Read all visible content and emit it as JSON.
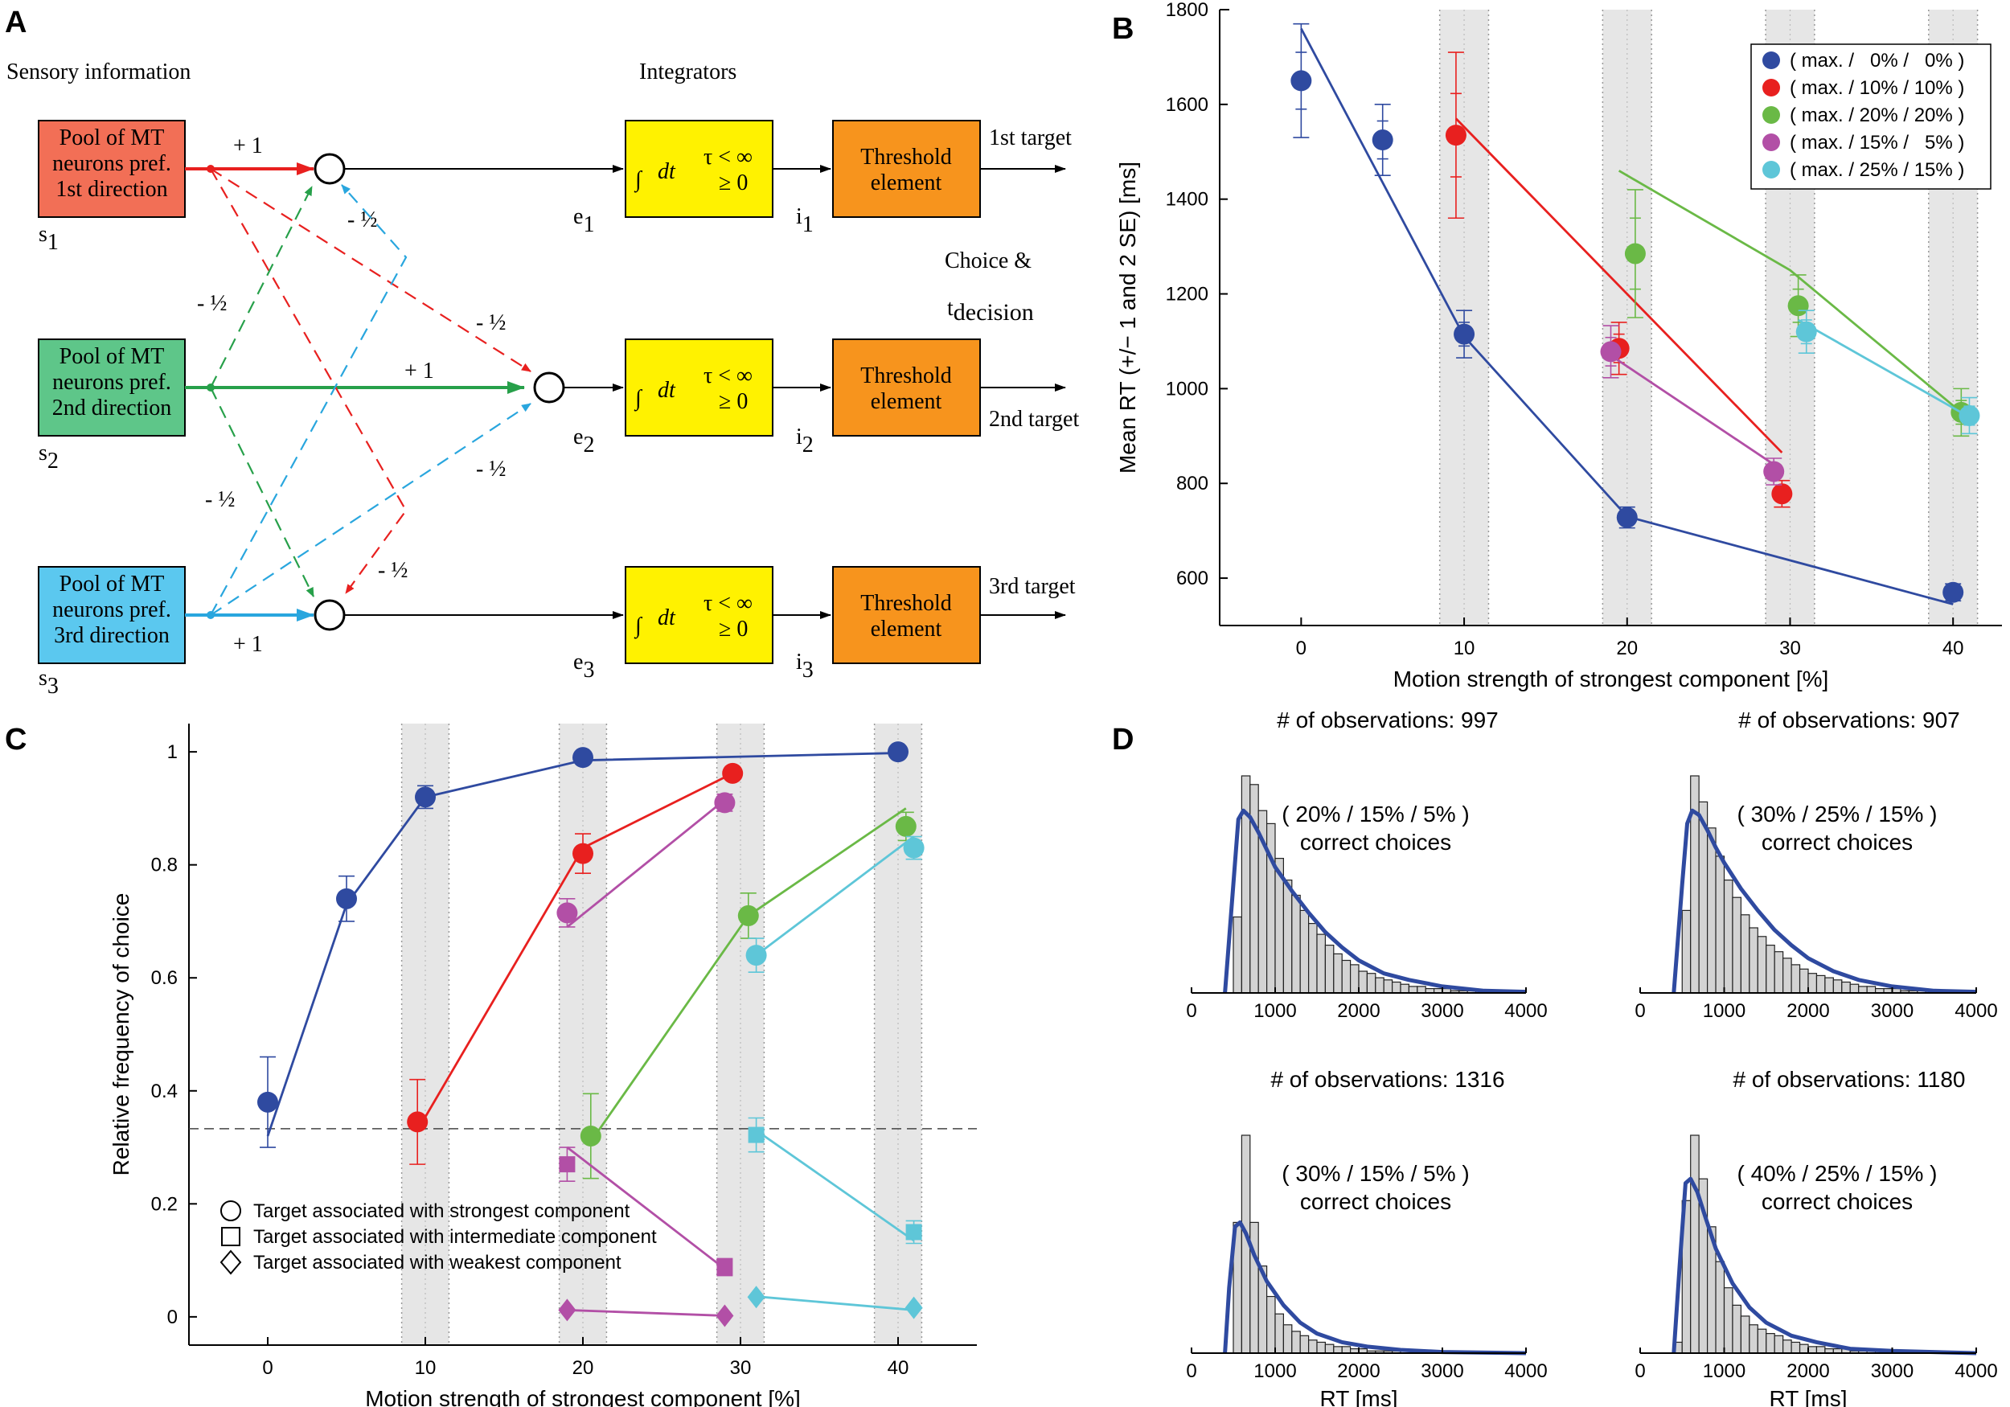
{
  "panels": {
    "A": "A",
    "B": "B",
    "C": "C",
    "D": "D"
  },
  "colors": {
    "blue": "#2f4aa0",
    "red": "#e8201f",
    "green": "#6ab946",
    "magenta": "#b24fa6",
    "cyan": "#5ec6d8",
    "red_box": "#f26f56",
    "green_box": "#5ec689",
    "cyan_box": "#5bc8ef",
    "yellow": "#fff200",
    "orange": "#f7941d",
    "gray_band": "#e6e6e6"
  },
  "diagram": {
    "sensory_label": "Sensory information",
    "integrators_label": "Integrators",
    "pools": [
      {
        "l1": "Pool of MT",
        "l2": "neurons pref.",
        "l3": "1st direction",
        "s": "s",
        "sub": "1"
      },
      {
        "l1": "Pool of MT",
        "l2": "neurons pref.",
        "l3": "2nd direction",
        "s": "s",
        "sub": "2"
      },
      {
        "l1": "Pool of MT",
        "l2": "neurons pref.",
        "l3": "3rd direction",
        "s": "s",
        "sub": "3"
      }
    ],
    "e_labels": [
      {
        "e": "e",
        "sub": "1"
      },
      {
        "e": "e",
        "sub": "2"
      },
      {
        "e": "e",
        "sub": "3"
      }
    ],
    "i_labels": [
      {
        "i": "i",
        "sub": "1"
      },
      {
        "i": "i",
        "sub": "2"
      },
      {
        "i": "i",
        "sub": "3"
      }
    ],
    "integral": "∫",
    "dt": "dt",
    "tau": "τ < ∞",
    "geq": "≥ 0",
    "threshold_l1": "Threshold",
    "threshold_l2": "element",
    "targets": [
      "1st target",
      "2nd target",
      "3rd target"
    ],
    "choice_l1": "Choice &",
    "choice_t": "t",
    "choice_sub": "decision",
    "weight_plus": "+ 1",
    "weight_minus": "- ½"
  },
  "chart_data": [
    {
      "panel": "B",
      "type": "scatter",
      "xlabel": "Motion strength of strongest component [%]",
      "ylabel": "Mean RT (+/− 1 and 2 SE) [ms]",
      "xlim": [
        -5,
        43
      ],
      "ylim": [
        500,
        1800
      ],
      "xticks": [
        0,
        10,
        20,
        30,
        40
      ],
      "yticks": [
        600,
        800,
        1000,
        1200,
        1400,
        1600,
        1800
      ],
      "bands": [
        [
          8.5,
          11.5
        ],
        [
          18.5,
          21.5
        ],
        [
          28.5,
          31.5
        ],
        [
          38.5,
          41.5
        ]
      ],
      "legend": [
        "( max. /   0% /   0% )",
        "( max. / 10% / 10% )",
        "( max. / 20% / 20% )",
        "( max. / 15% /   5% )",
        "( max. / 25% / 15% )"
      ],
      "series": [
        {
          "name": "( max. /   0% /   0% )",
          "color": "blue",
          "x": [
            0,
            5,
            10,
            20,
            40
          ],
          "y": [
            1650,
            1525,
            1115,
            728,
            570
          ],
          "err1": [
            60,
            40,
            25,
            12,
            10
          ],
          "err2": [
            120,
            75,
            50,
            22,
            18
          ],
          "fit_x": [
            0,
            10,
            20,
            40
          ],
          "fit_y": [
            1760,
            1110,
            730,
            545
          ]
        },
        {
          "name": "( max. / 10% / 10% )",
          "color": "red",
          "x": [
            9.5,
            19.5,
            29.5
          ],
          "y": [
            1535,
            1085,
            778
          ],
          "err1": [
            88,
            30,
            15
          ],
          "err2": [
            175,
            55,
            28
          ],
          "fit_x": [
            9.5,
            29.5
          ],
          "fit_y": [
            1570,
            865
          ]
        },
        {
          "name": "( max. / 20% / 20% )",
          "color": "green",
          "x": [
            20.5,
            30.5,
            40.5
          ],
          "y": [
            1285,
            1175,
            950
          ],
          "err1": [
            75,
            35,
            25
          ],
          "err2": [
            135,
            65,
            50
          ],
          "fit_x": [
            19.5,
            30,
            40.5
          ],
          "fit_y": [
            1460,
            1250,
            950
          ]
        },
        {
          "name": "( max. / 15% /   5% )",
          "color": "magenta",
          "x": [
            19,
            29
          ],
          "y": [
            1078,
            825
          ],
          "err1": [
            30,
            15
          ],
          "err2": [
            55,
            28
          ],
          "fit_x": [
            19,
            29
          ],
          "fit_y": [
            1070,
            840
          ]
        },
        {
          "name": "( max. / 25% / 15% )",
          "color": "cyan",
          "x": [
            31,
            41
          ],
          "y": [
            1120,
            943
          ],
          "err1": [
            25,
            20
          ],
          "err2": [
            45,
            38
          ],
          "fit_x": [
            30.5,
            41
          ],
          "fit_y": [
            1145,
            940
          ]
        }
      ]
    },
    {
      "panel": "C",
      "type": "scatter",
      "xlabel": "Motion strength of strongest component [%]",
      "ylabel": "Relative frequency of choice",
      "xlim": [
        -5,
        45
      ],
      "ylim": [
        -0.05,
        1.05
      ],
      "xticks": [
        0,
        10,
        20,
        30,
        40
      ],
      "yticks": [
        0,
        0.2,
        0.4,
        0.6,
        0.8,
        1
      ],
      "chance": 0.333,
      "bands": [
        [
          8.5,
          11.5
        ],
        [
          18.5,
          21.5
        ],
        [
          28.5,
          31.5
        ],
        [
          38.5,
          41.5
        ]
      ],
      "marker_legend": [
        "Target associated with strongest component",
        "Target associated with intermediate component",
        "Target associated with weakest component"
      ],
      "series": [
        {
          "name": "max/0/0 strongest",
          "color": "blue",
          "marker": "circle",
          "x": [
            0,
            5,
            10,
            20,
            40
          ],
          "y": [
            0.38,
            0.74,
            0.92,
            0.99,
            1.0
          ],
          "err": [
            0.08,
            0.04,
            0.02,
            0.01,
            0.01
          ],
          "fit_x": [
            0,
            5,
            10,
            20,
            40
          ],
          "fit_y": [
            0.32,
            0.73,
            0.92,
            0.985,
            0.998
          ]
        },
        {
          "name": "max/10/10 strongest",
          "color": "red",
          "marker": "circle",
          "x": [
            9.5,
            20,
            29.5
          ],
          "y": [
            0.345,
            0.82,
            0.962
          ],
          "err": [
            0.075,
            0.035,
            0.01
          ],
          "fit_x": [
            9.5,
            20,
            29.5
          ],
          "fit_y": [
            0.33,
            0.83,
            0.962
          ]
        },
        {
          "name": "max/20/20 strongest",
          "color": "green",
          "marker": "circle",
          "x": [
            20.5,
            30.5,
            40.5
          ],
          "y": [
            0.32,
            0.71,
            0.868
          ],
          "err": [
            0.075,
            0.04,
            0.025
          ],
          "fit_x": [
            20.5,
            30.5,
            40.5
          ],
          "fit_y": [
            0.31,
            0.71,
            0.9
          ]
        },
        {
          "name": "max/15/5 strongest",
          "color": "magenta",
          "marker": "circle",
          "x": [
            19,
            29
          ],
          "y": [
            0.715,
            0.91
          ],
          "err": [
            0.025,
            0.015
          ],
          "fit_x": [
            19,
            29
          ],
          "fit_y": [
            0.69,
            0.915
          ]
        },
        {
          "name": "max/25/15 strongest",
          "color": "cyan",
          "marker": "circle",
          "x": [
            31,
            41
          ],
          "y": [
            0.64,
            0.83
          ],
          "err": [
            0.03,
            0.02
          ],
          "fit_x": [
            31,
            41
          ],
          "fit_y": [
            0.64,
            0.85
          ]
        },
        {
          "name": "max/15/5 intermediate",
          "color": "magenta",
          "marker": "square",
          "x": [
            19,
            29
          ],
          "y": [
            0.27,
            0.088
          ],
          "err": [
            0.03,
            0.015
          ],
          "fit_x": [
            19,
            29
          ],
          "fit_y": [
            0.3,
            0.085
          ]
        },
        {
          "name": "max/25/15 intermediate",
          "color": "cyan",
          "marker": "square",
          "x": [
            31,
            41
          ],
          "y": [
            0.322,
            0.15
          ],
          "err": [
            0.03,
            0.02
          ],
          "fit_x": [
            31,
            41
          ],
          "fit_y": [
            0.33,
            0.135
          ]
        },
        {
          "name": "max/15/5 weakest",
          "color": "magenta",
          "marker": "diamond",
          "x": [
            19,
            29
          ],
          "y": [
            0.012,
            0.002
          ],
          "err": [
            0,
            0
          ],
          "fit_x": [
            19,
            29
          ],
          "fit_y": [
            0.012,
            0.002
          ]
        },
        {
          "name": "max/25/15 weakest",
          "color": "cyan",
          "marker": "diamond",
          "x": [
            31,
            41
          ],
          "y": [
            0.035,
            0.016
          ],
          "err": [
            0,
            0
          ],
          "fit_x": [
            31,
            41
          ],
          "fit_y": [
            0.036,
            0.012
          ]
        }
      ]
    },
    {
      "panel": "D",
      "type": "bar",
      "xlabel": "RT [ms]",
      "xlim": [
        0,
        4000
      ],
      "xticks": [
        0,
        1000,
        2000,
        3000,
        4000
      ],
      "bin_width": 100,
      "subplots": [
        {
          "title": "# of observations: 997",
          "cond": "( 20% / 15% / 5% )",
          "cond2": "correct choices",
          "bins_start": 500,
          "heights": [
            35,
            100,
            96,
            84,
            78,
            62,
            52,
            45,
            38,
            32,
            27,
            22,
            18,
            15,
            13,
            10,
            9,
            7,
            6,
            5,
            4,
            3,
            3,
            2,
            2,
            2,
            1,
            1,
            1,
            1
          ],
          "curve_x": [
            400,
            500,
            560,
            620,
            700,
            800,
            900,
            1000,
            1200,
            1400,
            1600,
            1800,
            2000,
            2300,
            2600,
            3000,
            3500,
            4000
          ],
          "curve_y": [
            0,
            50,
            80,
            84,
            81,
            74,
            66,
            58,
            47,
            37,
            28,
            21,
            15,
            9,
            6,
            3,
            1,
            0.5
          ]
        },
        {
          "title": "# of observations: 907",
          "cond": "( 30% / 25% / 15% )",
          "cond2": "correct choices",
          "bins_start": 500,
          "heights": [
            38,
            100,
            88,
            76,
            63,
            52,
            44,
            36,
            30,
            26,
            22,
            19,
            16,
            13,
            11,
            9,
            8,
            7,
            6,
            5,
            4,
            3,
            3,
            2,
            2,
            2,
            1,
            1,
            1,
            1
          ],
          "curve_x": [
            400,
            500,
            560,
            620,
            700,
            800,
            900,
            1000,
            1200,
            1400,
            1600,
            1800,
            2000,
            2300,
            2600,
            3000,
            3500,
            4000
          ],
          "curve_y": [
            0,
            50,
            78,
            84,
            82,
            75,
            67,
            60,
            48,
            38,
            29,
            22,
            16,
            10,
            6,
            3,
            1,
            0.5
          ]
        },
        {
          "title": "# of observations: 1316",
          "cond": "( 30% / 15% / 5% )",
          "cond2": "correct choices",
          "bins_start": 500,
          "heights": [
            60,
            100,
            60,
            40,
            26,
            18,
            13,
            10,
            8,
            6,
            5,
            4,
            3,
            3,
            2,
            2,
            1,
            1,
            1,
            1
          ],
          "curve_x": [
            400,
            450,
            520,
            580,
            650,
            750,
            900,
            1100,
            1300,
            1500,
            1800,
            2100,
            2500,
            3000,
            4000
          ],
          "curve_y": [
            0,
            30,
            58,
            60,
            55,
            45,
            33,
            22,
            14,
            9,
            5,
            3,
            1.5,
            0.5,
            0
          ]
        },
        {
          "title": "# of observations: 1180",
          "cond": "( 40% / 25% / 15% )",
          "cond2": "correct choices",
          "bins_start": 400,
          "heights": [
            5,
            70,
            100,
            80,
            58,
            42,
            30,
            22,
            17,
            13,
            11,
            9,
            8,
            6,
            5,
            4,
            3,
            3,
            2,
            2,
            2,
            1,
            1,
            1,
            1,
            1,
            1,
            1,
            1,
            1,
            1,
            1
          ],
          "curve_x": [
            400,
            470,
            540,
            600,
            680,
            780,
            900,
            1100,
            1300,
            1500,
            1800,
            2100,
            2500,
            3000,
            4000
          ],
          "curve_y": [
            0,
            40,
            78,
            80,
            74,
            62,
            48,
            32,
            21,
            14,
            8,
            5,
            2,
            1,
            0
          ]
        }
      ]
    }
  ]
}
